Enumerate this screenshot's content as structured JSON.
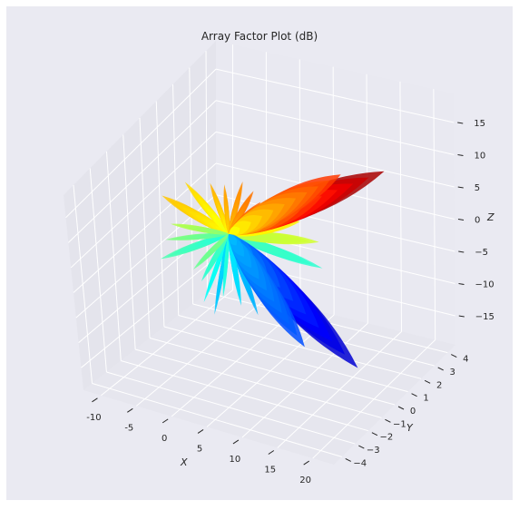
{
  "chart_data": {
    "type": "3d-surface",
    "title": "Array Factor Plot (dB)",
    "colormap": "jet",
    "axes": {
      "x": {
        "label": "X",
        "ticks": [
          -10,
          -5,
          0,
          5,
          10,
          15,
          20
        ]
      },
      "y": {
        "label": "Y",
        "ticks": [
          -4,
          -3,
          -2,
          -1,
          0,
          1,
          2,
          3,
          4
        ]
      },
      "z": {
        "label": "Z",
        "ticks": [
          -15,
          -10,
          -5,
          0,
          5,
          10,
          15
        ]
      }
    },
    "surface": {
      "description_hidden": false,
      "main_lobes": [
        {
          "direction": "upper-right",
          "value_db": 20,
          "color": "#d02010"
        },
        {
          "direction": "lower-right",
          "value_db": -20,
          "color": "#1020d8"
        }
      ]
    },
    "grid": true,
    "pane_color": "#eaeaf2"
  }
}
